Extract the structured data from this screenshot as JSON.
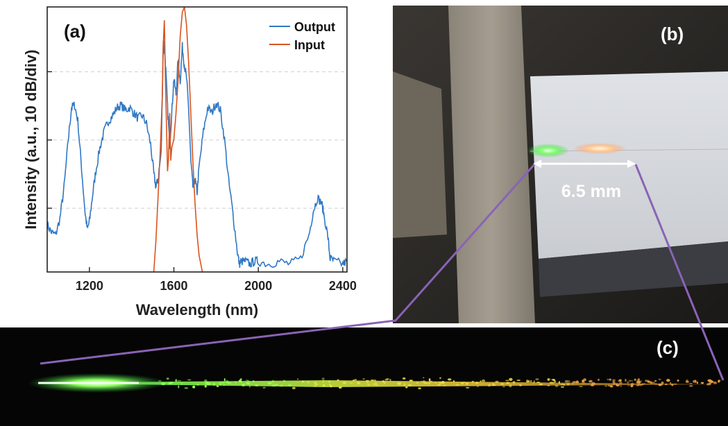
{
  "figure": {
    "panel_labels": {
      "a": "(a)",
      "b": "(b)",
      "c": "(c)"
    },
    "photo_annotation": "6.5 mm"
  },
  "chart_data": {
    "type": "line",
    "xlabel": "Wavelength (nm)",
    "ylabel": "Intensity (a.u., 10 dB/div)",
    "xlim": [
      1000,
      2420
    ],
    "ylim": [
      0,
      1
    ],
    "xticks": [
      1200,
      1600,
      2000,
      2400
    ],
    "xtick_labels": [
      "1200",
      "1600",
      "2000",
      "2400"
    ],
    "grid": "horizontal dashed",
    "legend_position": "top-right",
    "series": [
      {
        "name": "Output",
        "color": "#2f78c4",
        "x": [
          1000,
          1020,
          1040,
          1060,
          1080,
          1100,
          1115,
          1130,
          1145,
          1160,
          1180,
          1190,
          1200,
          1215,
          1230,
          1250,
          1270,
          1290,
          1310,
          1330,
          1350,
          1370,
          1390,
          1410,
          1430,
          1450,
          1470,
          1490,
          1505,
          1515,
          1525,
          1540,
          1550,
          1560,
          1570,
          1580,
          1590,
          1600,
          1610,
          1620,
          1630,
          1640,
          1650,
          1660,
          1670,
          1680,
          1690,
          1700,
          1710,
          1720,
          1740,
          1760,
          1780,
          1800,
          1820,
          1840,
          1860,
          1880,
          1900,
          1910,
          1920,
          1940,
          1960,
          1980,
          2000,
          2050,
          2100,
          2150,
          2200,
          2240,
          2260,
          2280,
          2300,
          2310,
          2330,
          2340,
          2360,
          2400,
          2420
        ],
        "y": [
          0.18,
          0.15,
          0.14,
          0.2,
          0.32,
          0.5,
          0.62,
          0.63,
          0.57,
          0.42,
          0.22,
          0.16,
          0.19,
          0.29,
          0.38,
          0.47,
          0.53,
          0.57,
          0.59,
          0.62,
          0.63,
          0.61,
          0.62,
          0.6,
          0.58,
          0.59,
          0.56,
          0.48,
          0.37,
          0.32,
          0.35,
          0.45,
          0.88,
          0.79,
          0.62,
          0.48,
          0.6,
          0.73,
          0.67,
          0.8,
          0.72,
          0.85,
          0.78,
          0.73,
          0.62,
          0.42,
          0.32,
          0.35,
          0.3,
          0.4,
          0.53,
          0.62,
          0.6,
          0.64,
          0.61,
          0.5,
          0.34,
          0.22,
          0.08,
          0.03,
          0.04,
          0.04,
          0.03,
          0.04,
          0.04,
          0.03,
          0.04,
          0.03,
          0.05,
          0.14,
          0.23,
          0.28,
          0.26,
          0.22,
          0.13,
          0.05,
          0.04,
          0.03,
          0.04
        ]
      },
      {
        "name": "Input",
        "color": "#d9541e",
        "x": [
          1505,
          1515,
          1525,
          1535,
          1545,
          1550,
          1555,
          1560,
          1565,
          1570,
          1575,
          1580,
          1585,
          1590,
          1600,
          1610,
          1620,
          1630,
          1640,
          1650,
          1660,
          1670,
          1680,
          1690,
          1700,
          1710,
          1720,
          1735
        ],
        "y": [
          0.0,
          0.12,
          0.28,
          0.45,
          0.66,
          0.86,
          0.95,
          0.72,
          0.55,
          0.38,
          0.43,
          0.6,
          0.42,
          0.47,
          0.5,
          0.6,
          0.72,
          0.89,
          0.98,
          1.0,
          0.93,
          0.79,
          0.6,
          0.42,
          0.26,
          0.14,
          0.06,
          0.0
        ]
      }
    ]
  }
}
